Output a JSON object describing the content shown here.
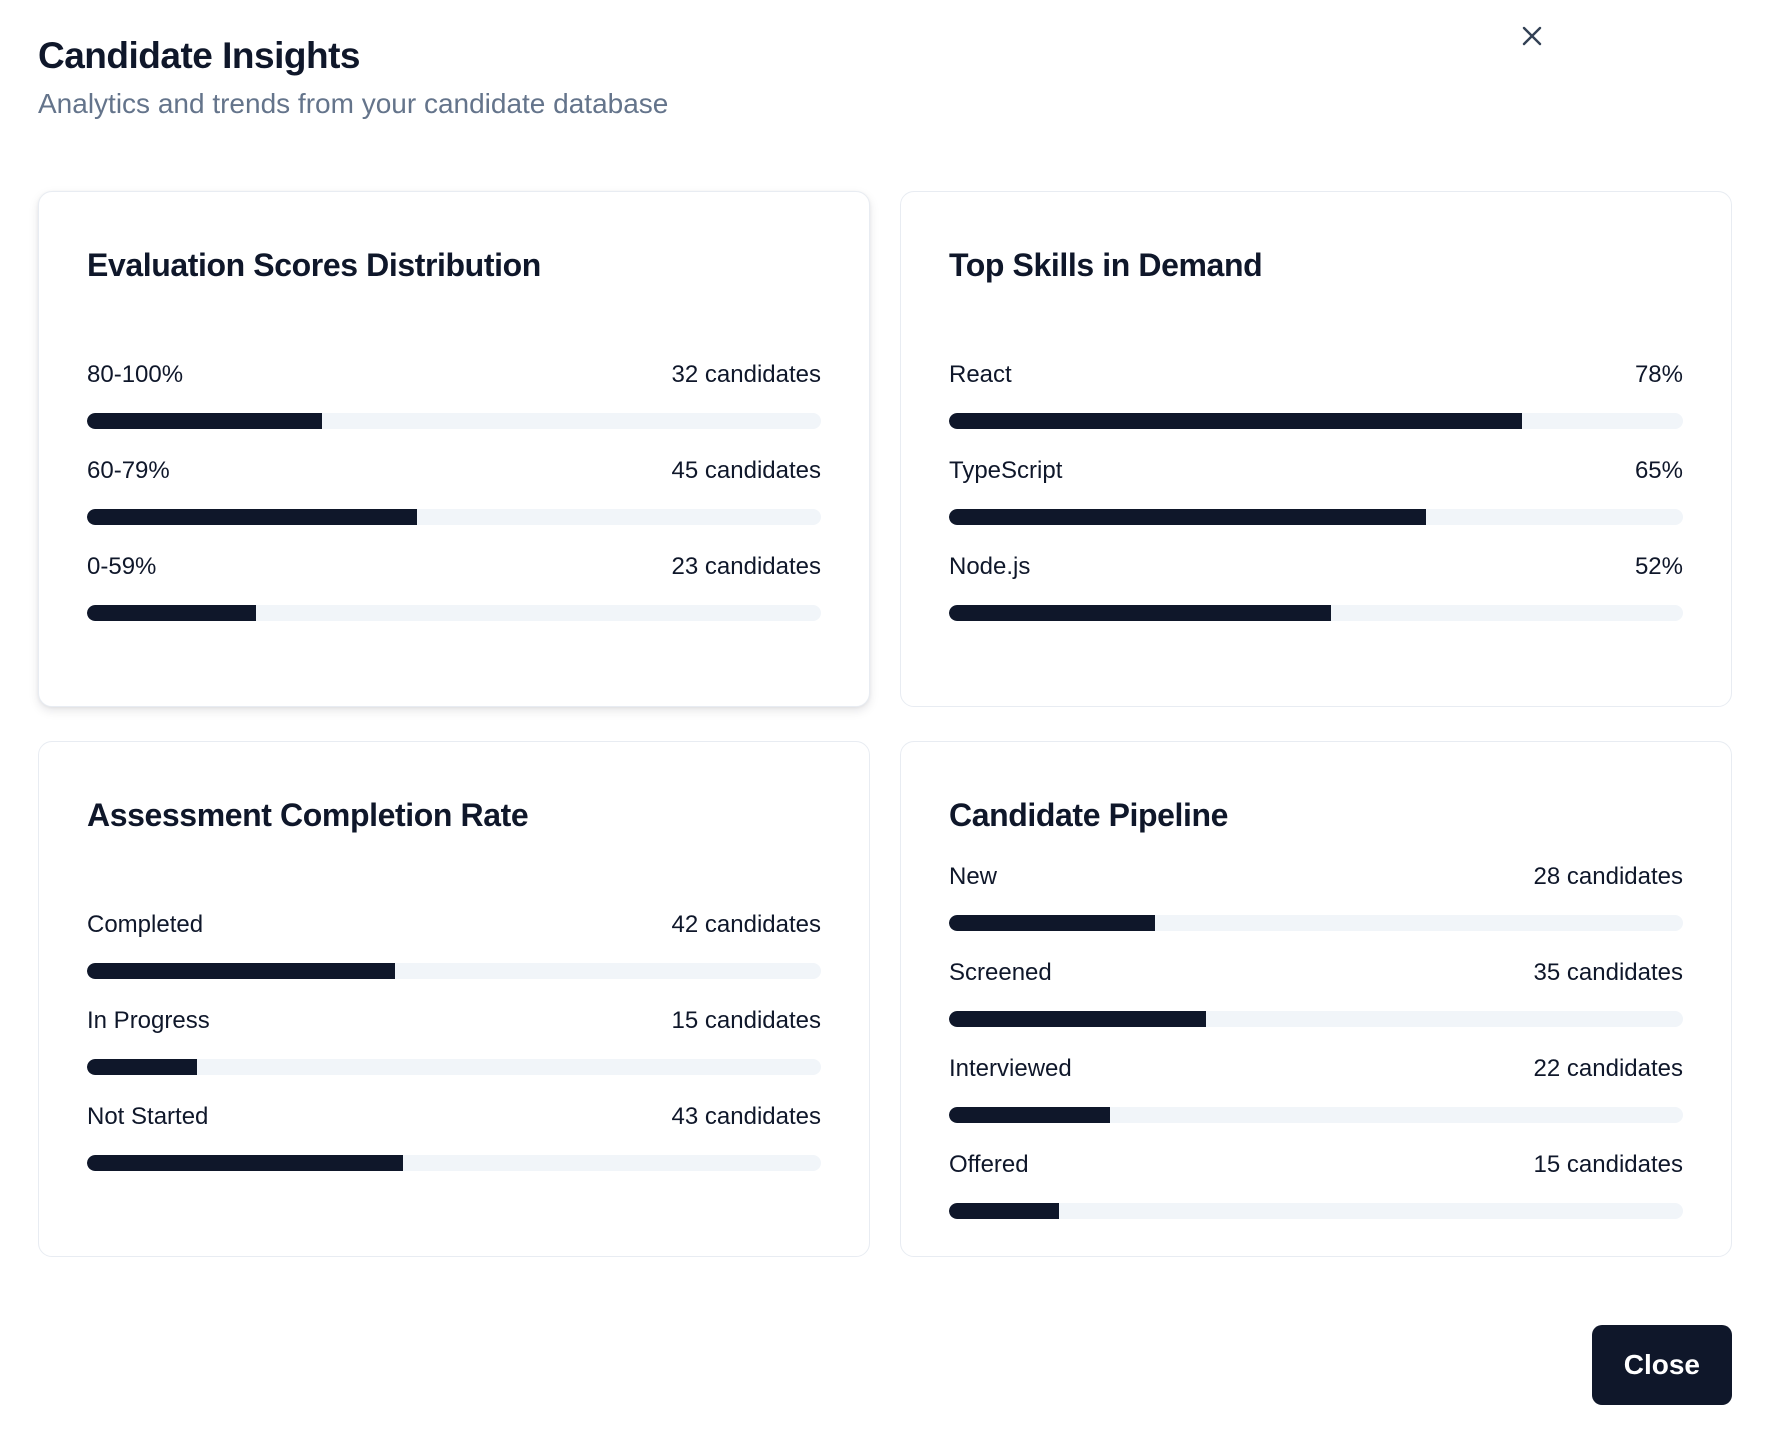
{
  "dialog": {
    "title": "Candidate Insights",
    "subtitle": "Analytics and trends from your candidate database",
    "close_icon": "close-icon",
    "close_button_label": "Close"
  },
  "cards": [
    {
      "title": "Evaluation Scores Distribution",
      "rows": [
        {
          "label": "80-100%",
          "value": "32 candidates",
          "fraction": 0.32
        },
        {
          "label": "60-79%",
          "value": "45 candidates",
          "fraction": 0.45
        },
        {
          "label": "0-59%",
          "value": "23 candidates",
          "fraction": 0.23
        }
      ]
    },
    {
      "title": "Top Skills in Demand",
      "rows": [
        {
          "label": "React",
          "value": "78%",
          "fraction": 0.78
        },
        {
          "label": "TypeScript",
          "value": "65%",
          "fraction": 0.65
        },
        {
          "label": "Node.js",
          "value": "52%",
          "fraction": 0.52
        }
      ]
    },
    {
      "title": "Assessment Completion Rate",
      "rows": [
        {
          "label": "Completed",
          "value": "42 candidates",
          "fraction": 0.42
        },
        {
          "label": "In Progress",
          "value": "15 candidates",
          "fraction": 0.15
        },
        {
          "label": "Not Started",
          "value": "43 candidates",
          "fraction": 0.43
        }
      ]
    },
    {
      "title": "Candidate Pipeline",
      "rows": [
        {
          "label": "New",
          "value": "28 candidates",
          "fraction": 0.28
        },
        {
          "label": "Screened",
          "value": "35 candidates",
          "fraction": 0.35
        },
        {
          "label": "Interviewed",
          "value": "22 candidates",
          "fraction": 0.22
        },
        {
          "label": "Offered",
          "value": "15 candidates",
          "fraction": 0.15
        }
      ]
    }
  ],
  "colors": {
    "bar_fill": "#0f172a",
    "bar_track": "#f1f5f9",
    "subtitle": "#64748b"
  }
}
